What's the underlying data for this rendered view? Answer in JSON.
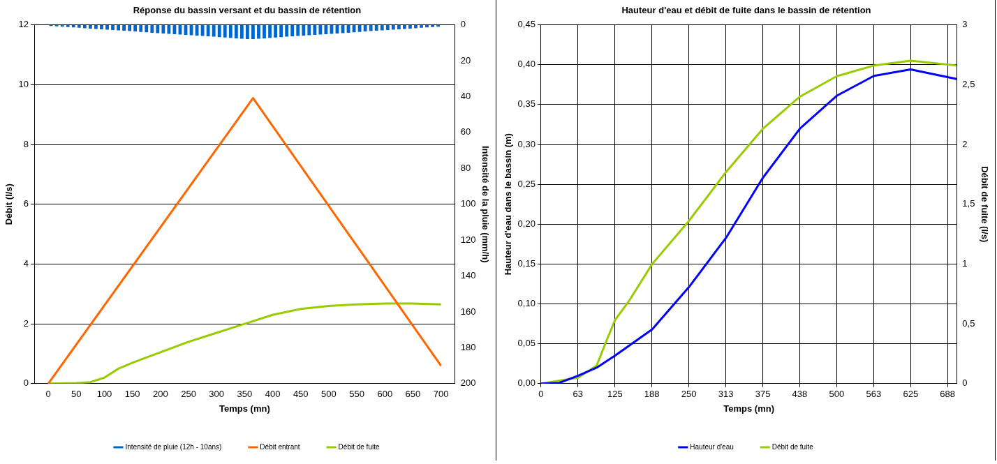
{
  "chart_data": [
    {
      "type": "line",
      "title": "Réponse du bassin versant et du bassin de rétention",
      "xlabel": "Temps (mn)",
      "ylabel": "Débit (l/s)",
      "y2label": "Intensité de la pluie (mm/h)",
      "xlim": [
        0,
        700
      ],
      "xticks": [
        0,
        50,
        100,
        150,
        200,
        250,
        300,
        350,
        400,
        450,
        500,
        550,
        600,
        650,
        700
      ],
      "ylim": [
        0,
        12
      ],
      "yticks": [
        0,
        2,
        4,
        6,
        8,
        10,
        12
      ],
      "y2lim": [
        200,
        0
      ],
      "y2ticks": [
        0,
        20,
        40,
        60,
        80,
        100,
        120,
        140,
        160,
        180,
        200
      ],
      "grid": "y",
      "legend": "bottom",
      "marker": "none",
      "series": [
        {
          "type": "bar",
          "axis": "y2",
          "name": "Intensité de pluie (12h - 10ans)",
          "color": "#0066cc",
          "x": [
            5,
            15,
            25,
            35,
            45,
            55,
            65,
            75,
            85,
            95,
            105,
            115,
            125,
            135,
            145,
            155,
            165,
            175,
            185,
            195,
            205,
            215,
            225,
            235,
            245,
            255,
            265,
            275,
            285,
            295,
            305,
            315,
            325,
            335,
            345,
            355,
            365,
            375,
            385,
            395,
            405,
            415,
            425,
            435,
            445,
            455,
            465,
            475,
            485,
            495,
            505,
            515,
            525,
            535,
            545,
            555,
            565,
            575,
            585,
            595,
            605,
            615,
            625,
            635,
            645,
            655,
            665,
            675,
            685,
            695
          ],
          "values": [
            0.6,
            0.8,
            1.0,
            1.2,
            1.4,
            1.6,
            1.9,
            2.1,
            2.3,
            2.5,
            2.7,
            2.9,
            3.1,
            3.3,
            3.5,
            3.7,
            3.9,
            4.1,
            4.4,
            4.6,
            4.8,
            5.0,
            5.2,
            5.4,
            5.6,
            5.8,
            6.0,
            6.2,
            6.4,
            6.6,
            6.9,
            7.1,
            7.3,
            7.5,
            7.7,
            7.9,
            7.9,
            7.7,
            7.5,
            7.3,
            7.1,
            6.9,
            6.6,
            6.4,
            6.2,
            6.0,
            5.8,
            5.6,
            5.4,
            5.2,
            5.0,
            4.8,
            4.6,
            4.4,
            4.1,
            3.9,
            3.7,
            3.5,
            3.3,
            3.1,
            2.9,
            2.7,
            2.5,
            2.3,
            2.1,
            1.9,
            1.6,
            1.4,
            1.2,
            1.0
          ]
        },
        {
          "type": "line",
          "name": "Débit entrant",
          "color": "#ff6600",
          "x": [
            0,
            365,
            700
          ],
          "values": [
            0,
            9.55,
            0.6
          ]
        },
        {
          "type": "line",
          "name": "Débit de fuite",
          "color": "#99cc00",
          "x": [
            0,
            50,
            75,
            100,
            125,
            150,
            200,
            250,
            300,
            350,
            400,
            450,
            500,
            550,
            600,
            650,
            700
          ],
          "values": [
            0,
            0.02,
            0.05,
            0.2,
            0.5,
            0.7,
            1.05,
            1.4,
            1.7,
            2.0,
            2.3,
            2.5,
            2.6,
            2.65,
            2.68,
            2.68,
            2.65
          ]
        }
      ]
    },
    {
      "type": "line",
      "title": "Hauteur d'eau et débit de fuite dans le bassin de rétention",
      "xlabel": "Temps (mn)",
      "ylabel": "Hauteur d'eau dans le bassin (m)",
      "y2label": "Débit de fuite (l/s)",
      "xlim": [
        0,
        703
      ],
      "xticks": [
        0,
        {
          "value": 62.5,
          "label": "63"
        },
        125,
        {
          "value": 187.5,
          "label": "188"
        },
        250,
        {
          "value": 312.5,
          "label": "313"
        },
        375,
        {
          "value": 437.5,
          "label": "438"
        },
        500,
        {
          "value": 562.5,
          "label": "563"
        },
        625,
        {
          "value": 687.5,
          "label": "688"
        }
      ],
      "ylim": [
        0,
        0.45
      ],
      "yticks": [
        {
          "value": 0,
          "label": "0,00"
        },
        {
          "value": 0.05,
          "label": "0,05"
        },
        {
          "value": 0.1,
          "label": "0,10"
        },
        {
          "value": 0.15,
          "label": "0,15"
        },
        {
          "value": 0.2,
          "label": "0,20"
        },
        {
          "value": 0.25,
          "label": "0,25"
        },
        {
          "value": 0.3,
          "label": "0,30"
        },
        {
          "value": 0.35,
          "label": "0,35"
        },
        {
          "value": 0.4,
          "label": "0,40"
        },
        {
          "value": 0.45,
          "label": "0,45"
        }
      ],
      "y2lim": [
        0,
        3
      ],
      "y2ticks": [
        0,
        {
          "value": 0.5,
          "label": "0,5"
        },
        1,
        {
          "value": 1.5,
          "label": "1,5"
        },
        2,
        {
          "value": 2.5,
          "label": "2,5"
        },
        3
      ],
      "grid": true,
      "legend": "bottom",
      "marker": "none",
      "series": [
        {
          "name": "Hauteur d'eau",
          "color": "#0000ff",
          "x": [
            0,
            31,
            63,
            94,
            125,
            188,
            250,
            313,
            375,
            438,
            500,
            563,
            625,
            703
          ],
          "values": [
            0,
            0.001,
            0.01,
            0.02,
            0.035,
            0.068,
            0.121,
            0.183,
            0.258,
            0.32,
            0.361,
            0.386,
            0.394,
            0.382
          ]
        },
        {
          "name": "Débit de fuite",
          "axis": "y2",
          "color": "#99cc00",
          "x": [
            0,
            63,
            94,
            110,
            125,
            150,
            188,
            250,
            313,
            375,
            438,
            500,
            563,
            625,
            703
          ],
          "values": [
            0,
            0.05,
            0.15,
            0.35,
            0.53,
            0.7,
            1.0,
            1.36,
            1.77,
            2.13,
            2.4,
            2.57,
            2.66,
            2.7,
            2.66
          ]
        }
      ]
    }
  ]
}
